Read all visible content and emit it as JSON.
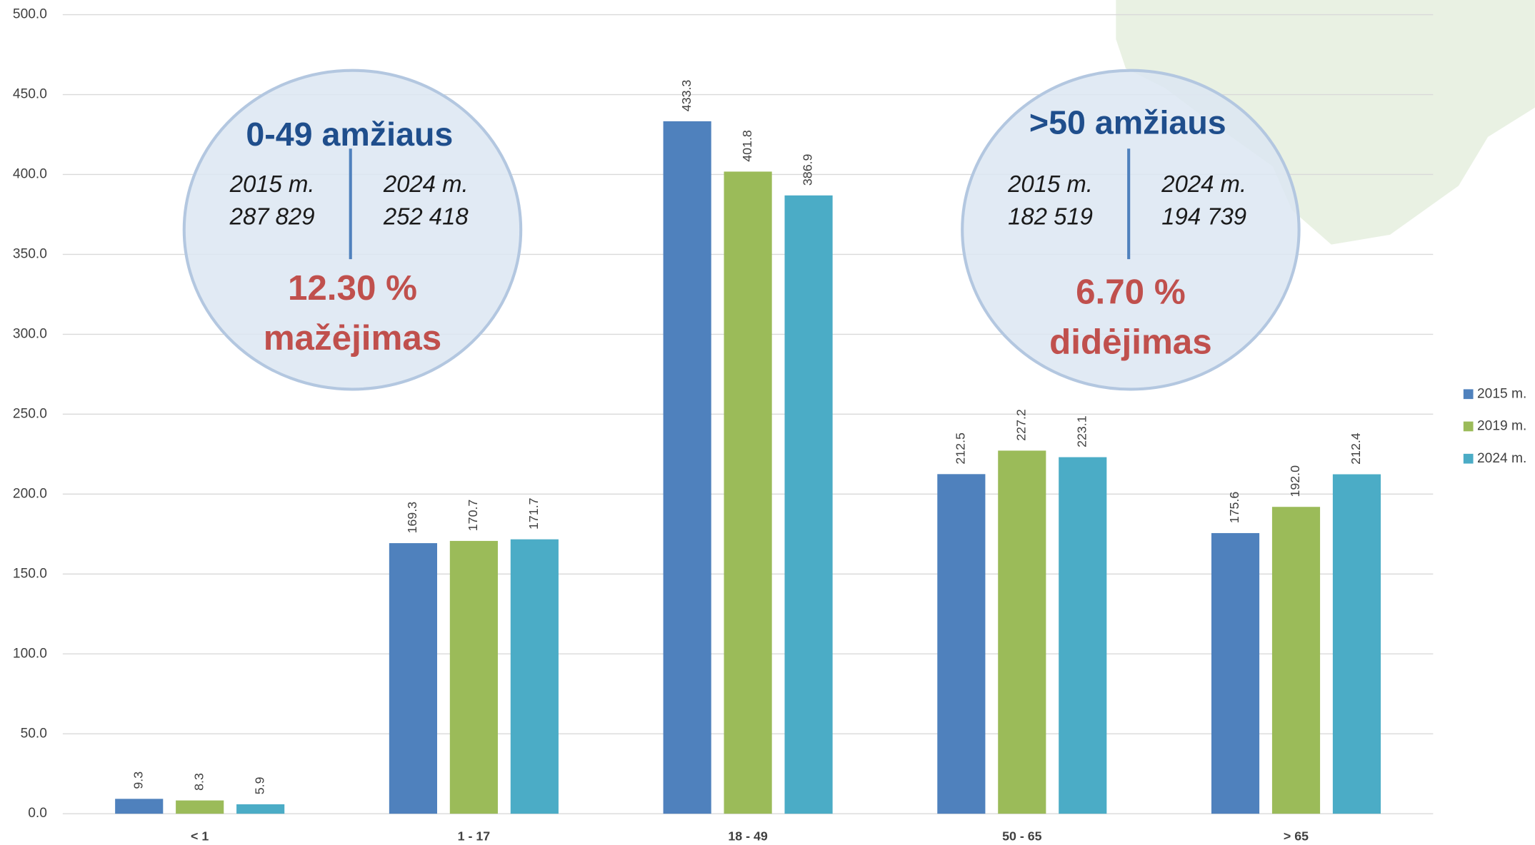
{
  "chart_data": {
    "type": "bar",
    "categories": [
      "< 1",
      "1 - 17",
      "18 - 49",
      "50 - 65",
      "> 65"
    ],
    "series": [
      {
        "name": "2015 m.",
        "color": "#4f81bd",
        "values": [
          9.3,
          169.3,
          433.3,
          212.5,
          175.6
        ],
        "value_labels": [
          "9.3",
          "169.3",
          "433.3",
          "212.5",
          "175.6"
        ]
      },
      {
        "name": "2019 m.",
        "color": "#9bbb59",
        "values": [
          8.3,
          170.7,
          401.8,
          227.2,
          192.0
        ],
        "value_labels": [
          "8.3",
          "170.7",
          "401.8",
          "227.2",
          "192.0"
        ]
      },
      {
        "name": "2024 m.",
        "color": "#4bacc6",
        "values": [
          5.9,
          171.7,
          386.9,
          223.1,
          212.4
        ],
        "value_labels": [
          "5.9",
          "171.7",
          "386.9",
          "223.1",
          "212.4"
        ]
      }
    ],
    "ylim": [
      0,
      500
    ],
    "yticks": [
      {
        "value": 0,
        "label": "0.0"
      },
      {
        "value": 50,
        "label": "50.0"
      },
      {
        "value": 100,
        "label": "100.0"
      },
      {
        "value": 150,
        "label": "150.0"
      },
      {
        "value": 200,
        "label": "200.0"
      },
      {
        "value": 250,
        "label": "250.0"
      },
      {
        "value": 300,
        "label": "300.0"
      },
      {
        "value": 350,
        "label": "350.0"
      },
      {
        "value": 400,
        "label": "400.0"
      },
      {
        "value": 450,
        "label": "450.0"
      },
      {
        "value": 500,
        "label": "500.0"
      }
    ],
    "grid": true,
    "legend": "right",
    "annotations": [
      {
        "title": "0-49 amžiaus",
        "left_year": "2015 m.",
        "left_value": "287 829",
        "right_year": "2024 m.",
        "right_value": "252 418",
        "change": "12.30 %",
        "change_label": "mažėjimas"
      },
      {
        "title": ">50 amžiaus",
        "left_year": "2015 m.",
        "left_value": "182 519",
        "right_year": "2024 m.",
        "right_value": "194 739",
        "change": "6.70 %",
        "change_label": "didėjimas"
      }
    ]
  }
}
